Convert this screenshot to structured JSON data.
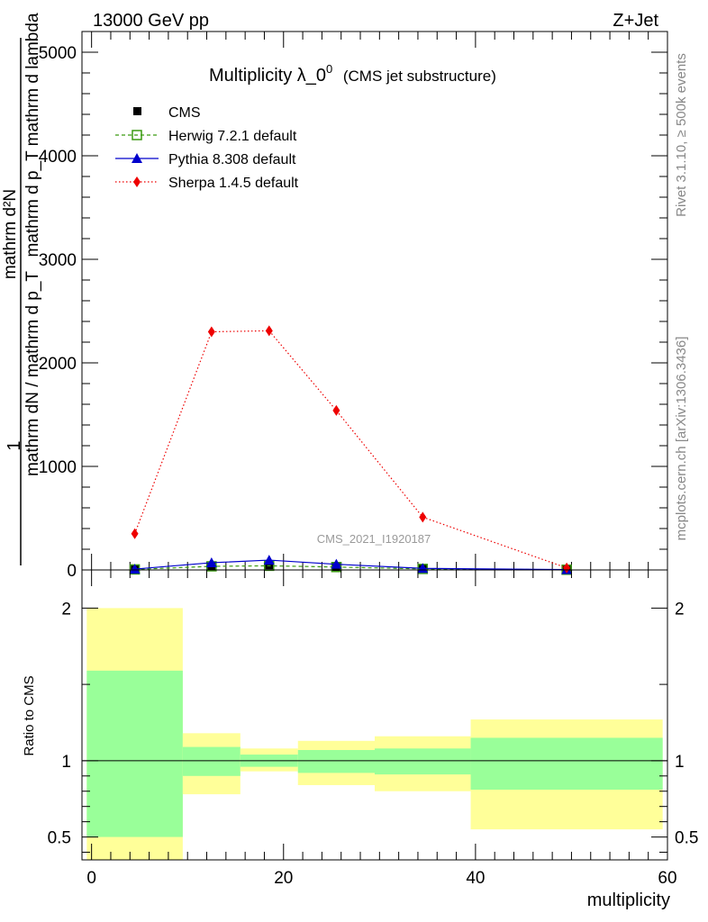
{
  "header": {
    "energy": "13000 GeV pp",
    "process": "Z+Jet"
  },
  "side": {
    "rivet": "Rivet 3.1.10, ≥ 500k events",
    "source": "mcplots.cern.ch [arXiv:1306.3436]"
  },
  "colors": {
    "herwig": "#3a9a10",
    "pythia": "#0000cc",
    "sherpa": "#ee0000",
    "band_inner": "#99ff99",
    "band_outer": "#ffff99"
  },
  "chart_data": [
    {
      "type": "line",
      "title": "Multiplicity λ_0",
      "title_sup": "0",
      "subtitle": "(CMS jet substructure)",
      "xlabel": "multiplicity",
      "ylabel_num": "1",
      "ylabel_den": "mathrm dN / mathrm d p_T",
      "ylabel_right_num": "mathrm d²N",
      "ylabel_right_den": "mathrm d p_T mathrm d lambda",
      "analysis_id": "CMS_2021_I1920187",
      "xlim": [
        -1,
        60
      ],
      "ylim": [
        0,
        5200
      ],
      "yticks": [
        0,
        1000,
        2000,
        3000,
        4000,
        5000
      ],
      "ytick_labels": [
        "0",
        "1000",
        "2000",
        "3000",
        "4000",
        "5000"
      ],
      "legend": [
        "CMS",
        "Herwig 7.2.1 default",
        "Pythia 8.308 default",
        "Sherpa 1.4.5 default"
      ],
      "x": [
        4.5,
        12.5,
        18.5,
        25.5,
        34.5,
        49.5
      ],
      "series": [
        {
          "name": "CMS",
          "values": [
            5,
            30,
            45,
            30,
            12,
            2
          ]
        },
        {
          "name": "Herwig 7.2.1 default",
          "values": [
            5,
            35,
            40,
            28,
            10,
            2
          ]
        },
        {
          "name": "Pythia 8.308 default",
          "values": [
            8,
            70,
            95,
            55,
            15,
            3
          ]
        },
        {
          "name": "Sherpa 1.4.5 default",
          "values": [
            350,
            2300,
            2310,
            1540,
            510,
            20
          ]
        }
      ]
    },
    {
      "type": "area",
      "ylabel": "Ratio to CMS",
      "xlim": [
        -1,
        60
      ],
      "ylim": [
        0.35,
        2.25
      ],
      "yticks": [
        0.5,
        1,
        2
      ],
      "ytick_labels": [
        "0.5",
        "1",
        "2"
      ],
      "xticks": [
        0,
        20,
        40,
        60
      ],
      "xtick_labels": [
        "0",
        "20",
        "40",
        "60"
      ],
      "bins": [
        {
          "x0": -0.5,
          "x1": 9.5,
          "inner": [
            0.5,
            1.59
          ],
          "outer": [
            0.3,
            2.0
          ]
        },
        {
          "x0": 9.5,
          "x1": 15.5,
          "inner": [
            0.9,
            1.09
          ],
          "outer": [
            0.78,
            1.18
          ]
        },
        {
          "x0": 15.5,
          "x1": 21.5,
          "inner": [
            0.96,
            1.04
          ],
          "outer": [
            0.93,
            1.08
          ]
        },
        {
          "x0": 21.5,
          "x1": 29.5,
          "inner": [
            0.92,
            1.07
          ],
          "outer": [
            0.84,
            1.13
          ]
        },
        {
          "x0": 29.5,
          "x1": 39.5,
          "inner": [
            0.91,
            1.08
          ],
          "outer": [
            0.8,
            1.16
          ]
        },
        {
          "x0": 39.5,
          "x1": 59.5,
          "inner": [
            0.81,
            1.15
          ],
          "outer": [
            0.55,
            1.27
          ]
        }
      ]
    }
  ]
}
